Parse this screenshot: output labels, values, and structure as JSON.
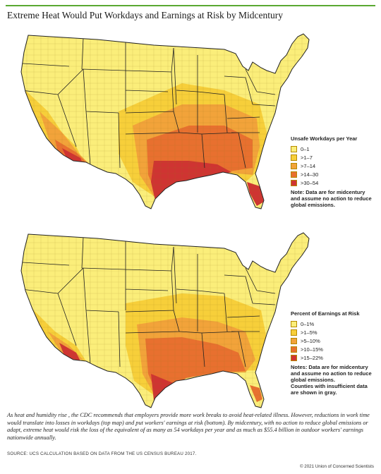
{
  "title": "Extreme Heat Would Put Workdays and Earnings at Risk by Midcentury",
  "map1": {
    "legend_title": "Unsafe Workdays per Year",
    "bins": [
      {
        "label": "0–1",
        "color": "#fbee7a"
      },
      {
        "label": ">1–7",
        "color": "#f7cf3a"
      },
      {
        "label": ">7–14",
        "color": "#f2a33a"
      },
      {
        "label": ">14–30",
        "color": "#e8702f"
      },
      {
        "label": ">30–54",
        "color": "#cf3432"
      }
    ],
    "note": "Note: Data are for midcentury and assume no action to reduce global emissions."
  },
  "map2": {
    "legend_title": "Percent of Earnings at Risk",
    "bins": [
      {
        "label": "0–1%",
        "color": "#fbee7a"
      },
      {
        "label": ">1–5%",
        "color": "#f7cf3a"
      },
      {
        "label": ">5–10%",
        "color": "#f2a33a"
      },
      {
        "label": ">10–15%",
        "color": "#e8702f"
      },
      {
        "label": ">15–22%",
        "color": "#cf3432"
      }
    ],
    "note": "Notes: Data are for midcentury and assume no action to reduce global emissions.",
    "note2": "Counties with insufficient data are shown in gray."
  },
  "caption": "As heat and humidity rise , the CDC recommends that employers provide more work breaks to avoid heat-related illness. However, reductions in work time would translate into losses in workdays (top map) and put workers' earnings at risk (bottom). By midcentury, with no action to reduce global emissions or adapt, extreme heat would risk the loss of the equivalent of as many as 54 workdays per year and as much as $55.4 billion in outdoor workers' earnings nationwide annually.",
  "source": "SOURCE: UCS CALCULATION BASED ON DATA FROM THE US CENSUS BUREAU 2017.",
  "copyright": "© 2021 Union of Concerned Scientists",
  "colors": {
    "accent_line": "#5aa832",
    "state_border": "#222222",
    "county_border": "#9a7a20"
  }
}
